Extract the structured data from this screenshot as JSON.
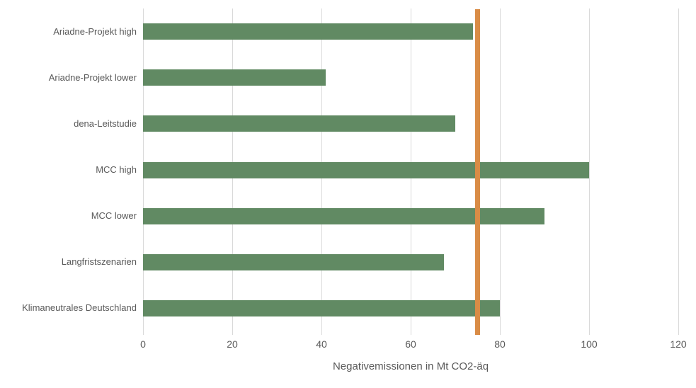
{
  "chart_data": {
    "type": "bar",
    "orientation": "horizontal",
    "title": "",
    "xlabel": "Negativemissionen in Mt CO2-äq",
    "ylabel": "",
    "categories": [
      "Ariadne-Projekt high",
      "Ariadne-Projekt lower",
      "dena-Leitstudie",
      "MCC high",
      "MCC lower",
      "Langfristszenarien",
      "Klimaneutrales Deutschland"
    ],
    "values": [
      74,
      41,
      70,
      100,
      90,
      67.5,
      80
    ],
    "xlim": [
      0,
      120
    ],
    "xticks": [
      0,
      20,
      40,
      60,
      80,
      100,
      120
    ],
    "grid": "vertical-only",
    "legend": "none",
    "reference_line": {
      "orientation": "vertical",
      "value": 75,
      "color": "#D98C46"
    },
    "colors": {
      "bar": "#618A63",
      "gridline": "#D9D9D9",
      "text": "#595959",
      "background": "#FFFFFF"
    }
  }
}
